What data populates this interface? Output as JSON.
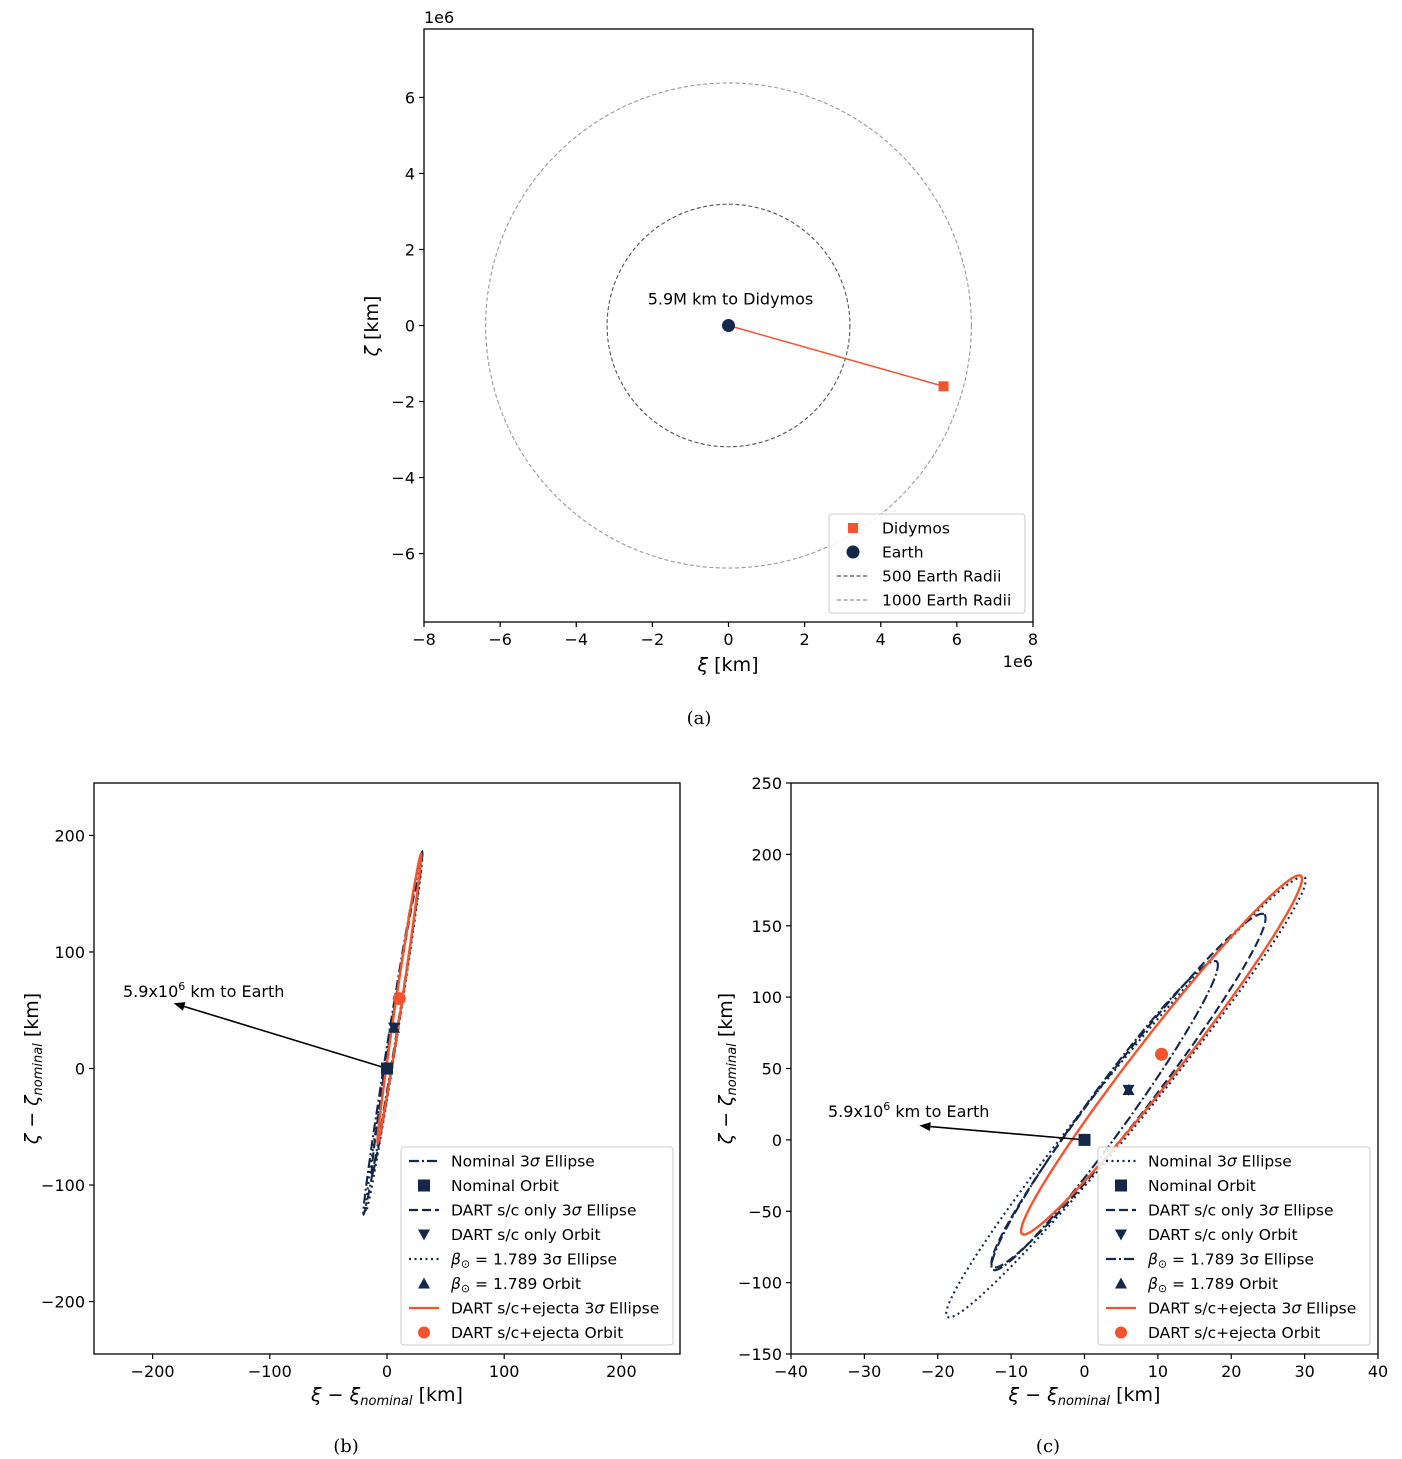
{
  "colors": {
    "navy": "#14284b",
    "orange": "#f4542d",
    "grey_dark": "#555555",
    "grey_light": "#999999"
  },
  "captions": {
    "a": "(a)",
    "b": "(b)",
    "c": "(c)"
  },
  "chart_data": [
    {
      "panel": "a",
      "type": "scatter",
      "xlabel": "ξ [km]",
      "ylabel": "ζ [km]",
      "x_multiplier": "1e6",
      "y_multiplier": "1e6",
      "xlim": [
        -8,
        8
      ],
      "ylim": [
        -7.8,
        7.8
      ],
      "x_ticks": [
        -8,
        -6,
        -4,
        -2,
        0,
        2,
        4,
        6,
        8
      ],
      "y_ticks": [
        -6,
        -4,
        -2,
        0,
        2,
        4,
        6
      ],
      "x_tick_labels": [
        "−8",
        "−6",
        "−4",
        "−2",
        "0",
        "2",
        "4",
        "6",
        "8"
      ],
      "y_tick_labels": [
        "−6",
        "−4",
        "−2",
        "0",
        "2",
        "4",
        "6"
      ],
      "circles": [
        {
          "name": "500 Earth Radii",
          "radius": 3.19,
          "style": "dashed",
          "color": "#555555"
        },
        {
          "name": "1000 Earth Radii",
          "radius": 6.38,
          "style": "dashed",
          "color": "#999999"
        }
      ],
      "points": [
        {
          "name": "Didymos",
          "x": 5.65,
          "y": -1.6,
          "marker": "square",
          "color": "#f4542d"
        },
        {
          "name": "Earth",
          "x": 0,
          "y": 0,
          "marker": "circle",
          "color": "#14284b"
        }
      ],
      "line": {
        "x": [
          0,
          5.65
        ],
        "y": [
          0,
          -1.6
        ],
        "color": "#f4542d"
      },
      "annotation": {
        "text": "5.9M km to Didymos",
        "x": 0,
        "y": 0.55
      },
      "legend": {
        "position": "lower right",
        "entries": [
          {
            "label": "Didymos",
            "marker": "square",
            "color": "#f4542d"
          },
          {
            "label": "Earth",
            "marker": "circle",
            "color": "#14284b"
          },
          {
            "label": "500 Earth Radii",
            "line": "dashed",
            "color": "#555555"
          },
          {
            "label": "1000 Earth Radii",
            "line": "dashed",
            "color": "#999999"
          }
        ]
      }
    },
    {
      "panel": "b",
      "type": "line",
      "xlabel": "ξ − ξ_nominal [km]",
      "ylabel": "ζ − ζ_nominal [km]",
      "xlim": [
        -250,
        250
      ],
      "ylim": [
        -245,
        245
      ],
      "x_ticks": [
        -200,
        -100,
        0,
        100,
        200
      ],
      "y_ticks": [
        -200,
        -100,
        0,
        100,
        200
      ],
      "x_tick_labels": [
        "−200",
        "−100",
        "0",
        "100",
        "200"
      ],
      "y_tick_labels": [
        "−200",
        "−100",
        "0",
        "100",
        "200"
      ],
      "annotation": {
        "text": "5.9x10",
        "sup": "6",
        "text2": " km to Earth",
        "from": [
          0,
          0
        ],
        "to": [
          -182,
          56
        ]
      },
      "ellipses": [
        {
          "name": "Nominal 3σ Ellipse",
          "end1": [
            -20,
            -125
          ],
          "end2": [
            30,
            186
          ],
          "width": 3.2,
          "style": "dashdot"
        },
        {
          "name": "DART s/c only 3σ Ellipse",
          "end1": [
            -13,
            -92
          ],
          "end2": [
            26,
            160
          ],
          "width": 3.0,
          "style": "dashed"
        },
        {
          "name": "β⊙ = 1.789 3σ Ellipse",
          "end1": [
            -18,
            -123
          ],
          "end2": [
            30,
            184
          ],
          "width": 3.2,
          "style": "dotted"
        },
        {
          "name": "DART s/c+ejecta 3σ Ellipse",
          "end1": [
            -8,
            -64
          ],
          "end2": [
            29,
            184
          ],
          "width": 2.6,
          "style": "solid"
        }
      ],
      "points": [
        {
          "name": "Nominal Orbit",
          "x": 0,
          "y": 0,
          "marker": "square"
        },
        {
          "name": "DART s/c only Orbit",
          "x": 6,
          "y": 35,
          "marker": "triangle-down"
        },
        {
          "name": "β⊙ = 1.789 Orbit",
          "x": 6,
          "y": 35,
          "marker": "triangle-up"
        },
        {
          "name": "DART s/c+ejecta Orbit",
          "x": 10.5,
          "y": 60,
          "marker": "circle"
        }
      ],
      "legend": {
        "position": "lower right",
        "entries": [
          {
            "pre": "Nominal 3",
            "sym": "σ",
            "post": " Ellipse",
            "kind": "line",
            "style": "dashdot",
            "color": "#14284b"
          },
          {
            "pre": "Nominal Orbit",
            "kind": "marker",
            "marker": "square",
            "color": "#14284b"
          },
          {
            "pre": "DART s/c only 3",
            "sym": "σ",
            "post": " Ellipse",
            "kind": "line",
            "style": "dashed",
            "color": "#14284b"
          },
          {
            "pre": "DART s/c only Orbit",
            "kind": "marker",
            "marker": "triangle-down",
            "color": "#14284b"
          },
          {
            "sym": "β",
            "sub": "⊙",
            "post": " = 1.789 3σ Ellipse",
            "kind": "line",
            "style": "dotted",
            "color": "#14284b"
          },
          {
            "sym": "β",
            "sub": "⊙",
            "post": " = 1.789 Orbit",
            "kind": "marker",
            "marker": "triangle-up",
            "color": "#14284b"
          },
          {
            "pre": "DART s/c+ejecta 3",
            "sym": "σ",
            "post": " Ellipse",
            "kind": "line",
            "style": "solid",
            "color": "#f4542d"
          },
          {
            "pre": "DART s/c+ejecta Orbit",
            "kind": "marker",
            "marker": "circle",
            "color": "#f4542d"
          }
        ]
      }
    },
    {
      "panel": "c",
      "type": "line",
      "xlabel": "ξ − ξ_nominal [km]",
      "ylabel": "ζ − ζ_nominal [km]",
      "xlim": [
        -40,
        40
      ],
      "ylim": [
        -150,
        250
      ],
      "x_ticks": [
        -40,
        -30,
        -20,
        -10,
        0,
        10,
        20,
        30,
        40
      ],
      "y_ticks": [
        -150,
        -100,
        -50,
        0,
        50,
        100,
        150,
        200,
        250
      ],
      "x_tick_labels": [
        "−40",
        "−30",
        "−20",
        "−10",
        "0",
        "10",
        "20",
        "30",
        "40"
      ],
      "y_tick_labels": [
        "−150",
        "−100",
        "−50",
        "0",
        "50",
        "100",
        "150",
        "200",
        "250"
      ],
      "annotation": {
        "text": "5.9x10",
        "sup": "6",
        "text2": " km to Earth",
        "from": [
          0,
          0
        ],
        "to": [
          -22.5,
          10
        ]
      },
      "ellipses": [
        {
          "name": "Nominal 3σ Ellipse",
          "end1": [
            -18.7,
            -124
          ],
          "end2": [
            30,
            184
          ],
          "width": 4.5,
          "style": "dotted"
        },
        {
          "name": "DART s/c only 3σ Ellipse",
          "end1": [
            -12.5,
            -89
          ],
          "end2": [
            24.5,
            158
          ],
          "width": 4.2,
          "style": "dashed"
        },
        {
          "name": "β⊙ = 1.789 3σ Ellipse",
          "end1": [
            -12.5,
            -91
          ],
          "end2": [
            18,
            125
          ],
          "width": 3.6,
          "style": "dashdot"
        },
        {
          "name": "DART s/c+ejecta 3σ Ellipse",
          "end1": [
            -8.5,
            -66
          ],
          "end2": [
            29.5,
            185
          ],
          "width": 3.8,
          "style": "solid"
        }
      ],
      "points": [
        {
          "name": "Nominal Orbit",
          "x": 0,
          "y": 0,
          "marker": "square"
        },
        {
          "name": "DART s/c only Orbit",
          "x": 6,
          "y": 35,
          "marker": "triangle-down"
        },
        {
          "name": "β⊙ = 1.789 Orbit",
          "x": 6,
          "y": 35,
          "marker": "triangle-up"
        },
        {
          "name": "DART s/c+ejecta Orbit",
          "x": 10.5,
          "y": 60,
          "marker": "circle"
        }
      ],
      "legend": {
        "position": "lower right",
        "entries": [
          {
            "pre": "Nominal 3",
            "sym": "σ",
            "post": " Ellipse",
            "kind": "line",
            "style": "dotted",
            "color": "#14284b"
          },
          {
            "pre": "Nominal Orbit",
            "kind": "marker",
            "marker": "square",
            "color": "#14284b"
          },
          {
            "pre": "DART s/c only 3",
            "sym": "σ",
            "post": " Ellipse",
            "kind": "line",
            "style": "dashed",
            "color": "#14284b"
          },
          {
            "pre": "DART s/c only Orbit",
            "kind": "marker",
            "marker": "triangle-down",
            "color": "#14284b"
          },
          {
            "sym": "β",
            "sub": "⊙",
            "post": " = 1.789 3σ Ellipse",
            "kind": "line",
            "style": "dashdot",
            "color": "#14284b"
          },
          {
            "sym": "β",
            "sub": "⊙",
            "post": " = 1.789 Orbit",
            "kind": "marker",
            "marker": "triangle-up",
            "color": "#14284b"
          },
          {
            "pre": "DART s/c+ejecta 3",
            "sym": "σ",
            "post": " Ellipse",
            "kind": "line",
            "style": "solid",
            "color": "#f4542d"
          },
          {
            "pre": "DART s/c+ejecta Orbit",
            "kind": "marker",
            "marker": "circle",
            "color": "#f4542d"
          }
        ]
      }
    }
  ]
}
